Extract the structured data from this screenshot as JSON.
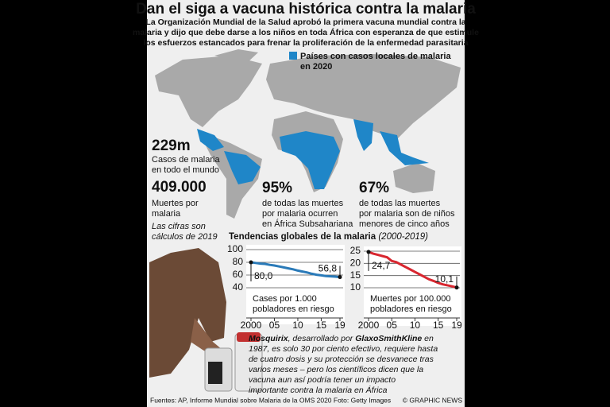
{
  "header": {
    "title": "Dan el siga a vacuna histórica contra la malaria",
    "subtitle": [
      "La Organización Mundial de la Salud aprobó la primera vacuna mundial contra la",
      "malaria y dijo que debe darse a los niños en toda África con esperanza de que estimule",
      "los esfuerzos estancados para frenar la proliferación de la enfermedad parasitaria"
    ]
  },
  "map": {
    "legend": [
      "Países con casos locales de malaria",
      "en 2020"
    ],
    "color": "#1f86c8"
  },
  "stats": [
    {
      "figure": "229m",
      "lines": [
        "Casos de malaria",
        "en todo el mundo"
      ]
    },
    {
      "figure": "409.000",
      "lines": [
        "Muertes por",
        "malaria"
      ]
    },
    {
      "figure": "95%",
      "lines": [
        "de todas las muertes",
        "por malaria ocurren",
        "en África Subsahariana"
      ]
    },
    {
      "figure": "67%",
      "lines": [
        "de todas las muertes",
        "por malaria son de niños",
        "menores de cinco años"
      ]
    }
  ],
  "note": [
    "Las cifras son",
    "cálculos de 2019"
  ],
  "trends": {
    "title": "Tendencias globales de la malaria",
    "period": "(2000-2019)"
  },
  "chart_data": [
    {
      "type": "line",
      "caption": [
        "Cases por 1.000",
        "pobladores en riesgo"
      ],
      "color": "#2a7ab8",
      "x": [
        2000,
        2001,
        2002,
        2003,
        2004,
        2005,
        2006,
        2007,
        2008,
        2009,
        2010,
        2011,
        2012,
        2013,
        2014,
        2015,
        2016,
        2017,
        2018,
        2019
      ],
      "values": [
        80,
        79,
        78,
        77.5,
        76,
        75,
        73.5,
        72,
        70.5,
        69,
        67,
        65.5,
        64,
        62,
        60.5,
        59.5,
        58.5,
        58,
        57.5,
        56.8
      ],
      "value_labels": [
        "80,0",
        null,
        null,
        null,
        null,
        null,
        null,
        null,
        null,
        null,
        null,
        null,
        null,
        null,
        null,
        null,
        null,
        null,
        null,
        "56,8"
      ],
      "xlim": [
        2000,
        2019
      ],
      "ylim": [
        40,
        100
      ],
      "yticks": [
        40,
        60,
        80,
        100
      ],
      "xticks": [
        {
          "value": 2000,
          "label": "2000"
        },
        {
          "value": 2005,
          "label": "05"
        },
        {
          "value": 2010,
          "label": "10"
        },
        {
          "value": 2015,
          "label": "15"
        },
        {
          "value": 2019,
          "label": "19"
        }
      ],
      "grid": true
    },
    {
      "type": "line",
      "caption": [
        "Muertes por 100.000",
        "pobladores en riesgo"
      ],
      "color": "#d8262f",
      "x": [
        2000,
        2001,
        2002,
        2003,
        2004,
        2005,
        2006,
        2007,
        2008,
        2009,
        2010,
        2011,
        2012,
        2013,
        2014,
        2015,
        2016,
        2017,
        2018,
        2019
      ],
      "values": [
        24.7,
        24,
        23.5,
        23,
        22.5,
        21,
        20.5,
        19.5,
        18.5,
        17.5,
        16.5,
        15.5,
        14.5,
        13.5,
        12.8,
        12,
        11.4,
        11,
        10.6,
        10.1
      ],
      "value_labels": [
        "24,7",
        null,
        null,
        null,
        null,
        null,
        null,
        null,
        null,
        null,
        null,
        null,
        null,
        null,
        null,
        null,
        null,
        null,
        null,
        "10,1"
      ],
      "xlim": [
        2000,
        2019
      ],
      "ylim": [
        10,
        25
      ],
      "yticks": [
        10,
        15,
        20,
        25
      ],
      "xticks": [
        {
          "value": 2000,
          "label": "2000"
        },
        {
          "value": 2005,
          "label": "05"
        },
        {
          "value": 2010,
          "label": "10"
        },
        {
          "value": 2015,
          "label": "15"
        },
        {
          "value": 2019,
          "label": "19"
        }
      ],
      "grid": true
    }
  ],
  "body": {
    "lines": [
      [
        {
          "text": "Mosquirix",
          "bold": true
        },
        {
          "text": ", desarrollado por ",
          "bold": false
        },
        {
          "text": "GlaxoSmithKline",
          "bold": true
        },
        {
          "text": " en",
          "bold": false
        }
      ],
      [
        {
          "text": "1987, es solo 30 por ciento efectivo, requiere hasta",
          "bold": false
        }
      ],
      [
        {
          "text": "de cuatro dosis y su protección se desvanece tras",
          "bold": false
        }
      ],
      [
        {
          "text": "varios meses – pero los científicos dicen que la",
          "bold": false
        }
      ],
      [
        {
          "text": "vacuna aun así podría tener un impacto",
          "bold": false
        }
      ],
      [
        {
          "text": "importante contra la malaria en África",
          "bold": false
        }
      ]
    ]
  },
  "footer": {
    "sources": "Fuentes: AP, Informe Mundial sobre Malaria de la OMS 2020  Foto: Getty Images",
    "credit": "© GRAPHIC NEWS"
  }
}
